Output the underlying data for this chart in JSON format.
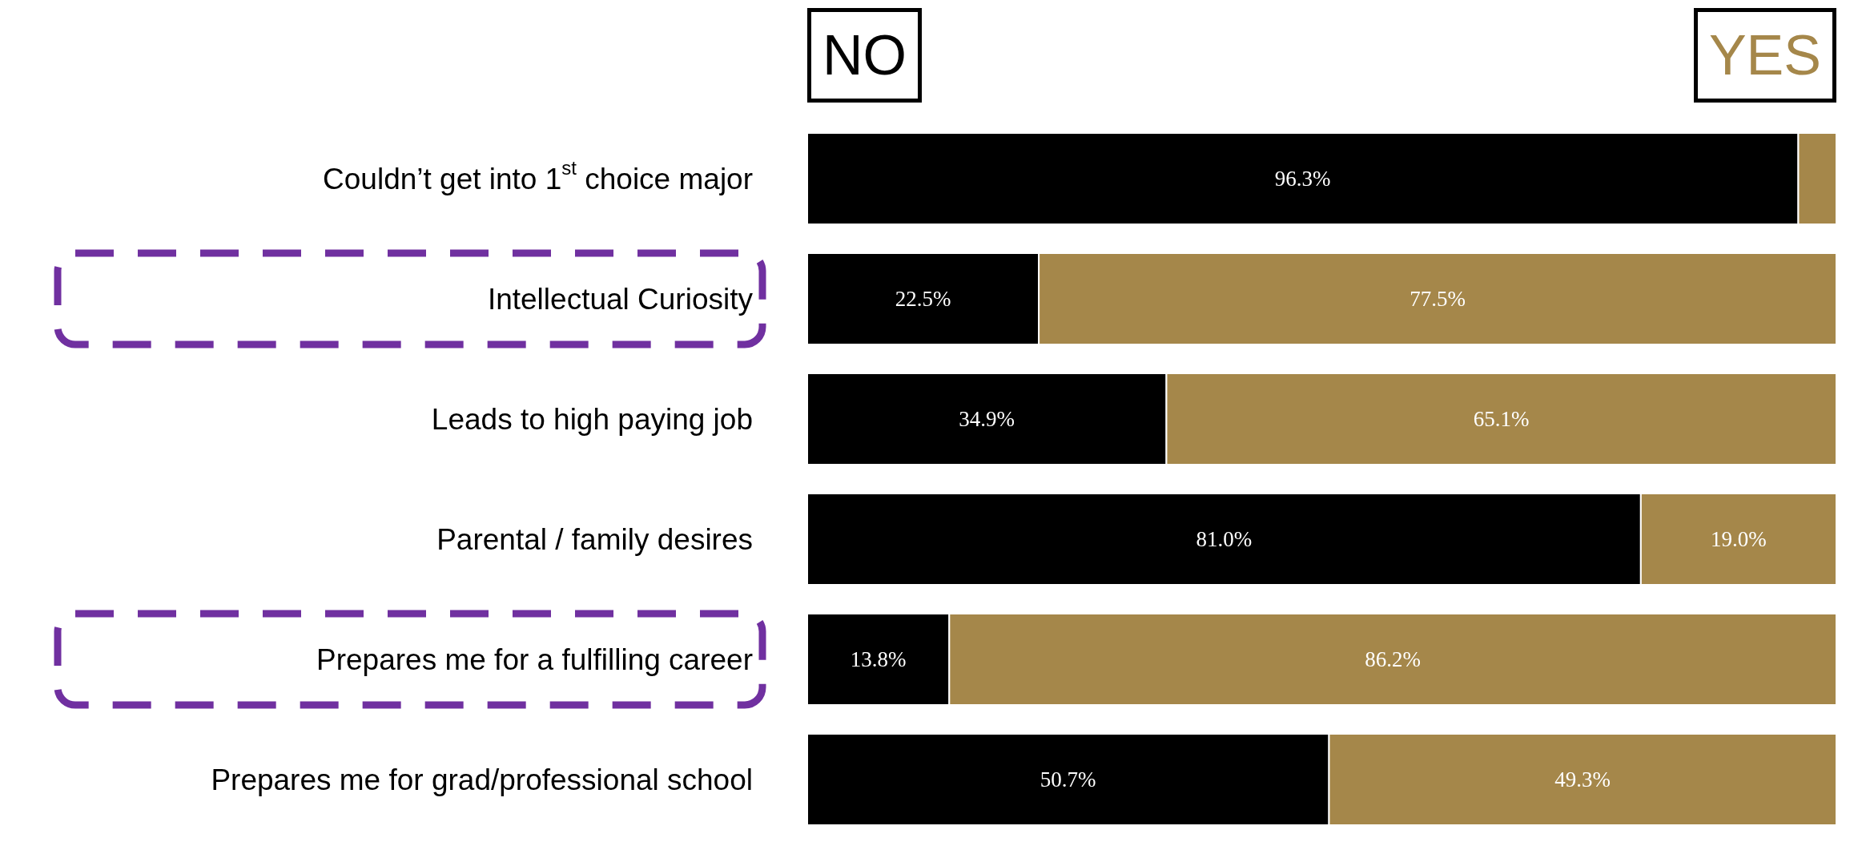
{
  "chart_data": {
    "type": "bar",
    "orientation": "horizontal",
    "stacked": true,
    "categories": [
      "Couldn’t get into 1$^{st}$ choice major",
      "Intellectual Curiosity",
      "Leads to high paying job",
      "Parental / family desires",
      "Prepares me for a fulfilling career",
      "Prepares me for grad/professional school"
    ],
    "series": [
      {
        "name": "NO",
        "color": "#000000",
        "values": [
          96.3,
          22.5,
          34.9,
          81.0,
          13.8,
          50.7
        ],
        "value_labels": [
          "96.3%",
          "22.5%",
          "34.9%",
          "81.0%",
          "13.8%",
          "50.7%"
        ]
      },
      {
        "name": "YES",
        "color": "#a5874a",
        "values": [
          3.7,
          77.5,
          65.1,
          19.0,
          86.2,
          49.3
        ],
        "value_labels": [
          null,
          "77.5%",
          "65.1%",
          "19.0%",
          "86.2%",
          "49.3%"
        ]
      }
    ],
    "xlim": [
      0,
      100
    ],
    "tick_labels": "y",
    "legend": "top"
  }
}
